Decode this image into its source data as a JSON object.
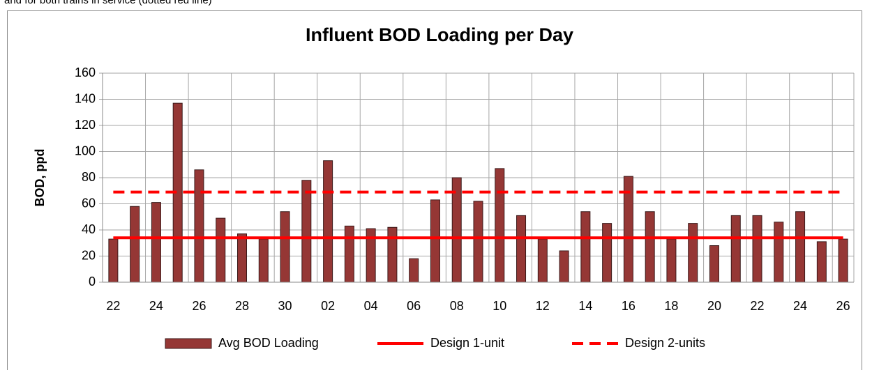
{
  "caption": "and for both trains in service (dotted red line)",
  "chart_data": {
    "type": "bar",
    "title": "Influent BOD Loading per Day",
    "y_label": "BOD, ppd",
    "categories": [
      "22",
      null,
      "24",
      null,
      "26",
      null,
      "28",
      null,
      "30",
      null,
      "02",
      null,
      "04",
      null,
      "06",
      null,
      "08",
      null,
      "10",
      null,
      "12",
      null,
      "14",
      null,
      "16",
      null,
      "18",
      null,
      "20",
      null,
      "22",
      null,
      "24",
      null,
      "26"
    ],
    "series": [
      {
        "name": "Avg BOD Loading",
        "type": "bar",
        "color": "#953735",
        "values": [
          33,
          58,
          61,
          137,
          86,
          49,
          37,
          33,
          54,
          78,
          93,
          43,
          41,
          42,
          18,
          63,
          80,
          62,
          87,
          51,
          33,
          24,
          54,
          45,
          81,
          54,
          33,
          45,
          28,
          51,
          51,
          46,
          54,
          31,
          33
        ]
      },
      {
        "name": "Design 1-unit",
        "type": "line",
        "color": "#ff0000",
        "dash": "solid",
        "values": [
          34,
          34,
          34,
          34,
          34,
          34,
          34,
          34,
          34,
          34,
          34,
          34,
          34,
          34,
          34,
          34,
          34,
          34,
          34,
          34,
          34,
          34,
          34,
          34,
          34,
          34,
          34,
          34,
          34,
          34,
          34,
          34,
          34,
          34,
          34
        ]
      },
      {
        "name": "Design 2-units",
        "type": "line",
        "color": "#ff0000",
        "dash": "dashed",
        "values": [
          69,
          69,
          69,
          69,
          69,
          69,
          69,
          69,
          69,
          69,
          69,
          69,
          69,
          69,
          69,
          69,
          69,
          69,
          69,
          69,
          69,
          69,
          69,
          69,
          69,
          69,
          69,
          69,
          69,
          69,
          69,
          69,
          69,
          69,
          69
        ]
      }
    ],
    "ylim": [
      0,
      160
    ],
    "yticks": [
      0,
      20,
      40,
      60,
      80,
      100,
      120,
      140,
      160
    ],
    "grid": true,
    "legend": "bottom"
  }
}
